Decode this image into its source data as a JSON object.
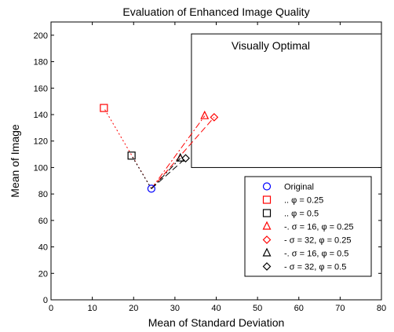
{
  "chart_data": {
    "type": "scatter",
    "title": "Evaluation of Enhanced Image Quality",
    "xlabel": "Mean of Standard Deviation",
    "ylabel": "Mean of Image",
    "xlim": [
      0,
      80
    ],
    "ylim": [
      0,
      210
    ],
    "xticks": [
      0,
      10,
      20,
      30,
      40,
      50,
      60,
      70,
      80
    ],
    "yticks": [
      0,
      20,
      40,
      60,
      80,
      100,
      120,
      140,
      160,
      180,
      200
    ],
    "grid": false,
    "legend_position": "bottom-right",
    "annotation": {
      "text": "Visually Optimal",
      "x_range": [
        34,
        80
      ],
      "y_range": [
        100,
        201
      ]
    },
    "origin": {
      "x": 24.3,
      "y": 84
    },
    "series": [
      {
        "name": "Original",
        "marker": "circle",
        "color": "#0000ff",
        "line": "none",
        "points": [
          [
            24.3,
            84
          ]
        ]
      },
      {
        "name": ".. φ = 0.25",
        "marker": "square",
        "color": "#ff0000",
        "line": "dotted",
        "points": [
          [
            12.8,
            145
          ]
        ]
      },
      {
        "name": ".. φ = 0.5",
        "marker": "square",
        "color": "#000000",
        "line": "dotted",
        "points": [
          [
            19.5,
            109
          ]
        ]
      },
      {
        "name": "-. σ = 16, φ = 0.25",
        "marker": "triangle",
        "color": "#ff0000",
        "line": "dashdot",
        "points": [
          [
            37.2,
            139
          ]
        ]
      },
      {
        "name": "- σ = 32, φ = 0.25",
        "marker": "diamond",
        "color": "#ff0000",
        "line": "dashed",
        "points": [
          [
            39.5,
            138
          ]
        ]
      },
      {
        "name": "-. σ = 16, φ = 0.5",
        "marker": "triangle",
        "color": "#000000",
        "line": "dashdot",
        "points": [
          [
            31.3,
            107
          ]
        ]
      },
      {
        "name": "- σ = 32, φ = 0.5",
        "marker": "diamond",
        "color": "#000000",
        "line": "dashed",
        "points": [
          [
            32.6,
            107
          ]
        ]
      }
    ]
  }
}
